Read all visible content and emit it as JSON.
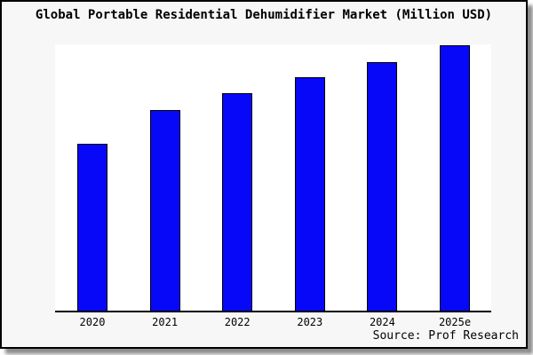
{
  "title": "Global Portable Residential Dehumidifier Market (Million USD)",
  "source": "Source: Prof Research",
  "colors": {
    "bar_fill": "#0808f8",
    "bar_border": "#000000",
    "card_background": "#f7f7f7",
    "plot_background": "#ffffff",
    "axis": "#000000",
    "text": "#000000"
  },
  "chart_data": {
    "type": "bar",
    "categories": [
      "2020",
      "2021",
      "2022",
      "2023",
      "2024",
      "2025e"
    ],
    "values": [
      62.7,
      75.3,
      81.7,
      87.7,
      93.3,
      99.7
    ],
    "title": "Global Portable Residential Dehumidifier Market (Million USD)",
    "xlabel": "",
    "ylabel": "Million USD",
    "ylim": [
      0,
      100
    ],
    "y_axis_labels_visible": false,
    "grid": false,
    "legend": false,
    "note_units": "bars unlabeled; values are percent of plot height (2025e tallest)"
  }
}
